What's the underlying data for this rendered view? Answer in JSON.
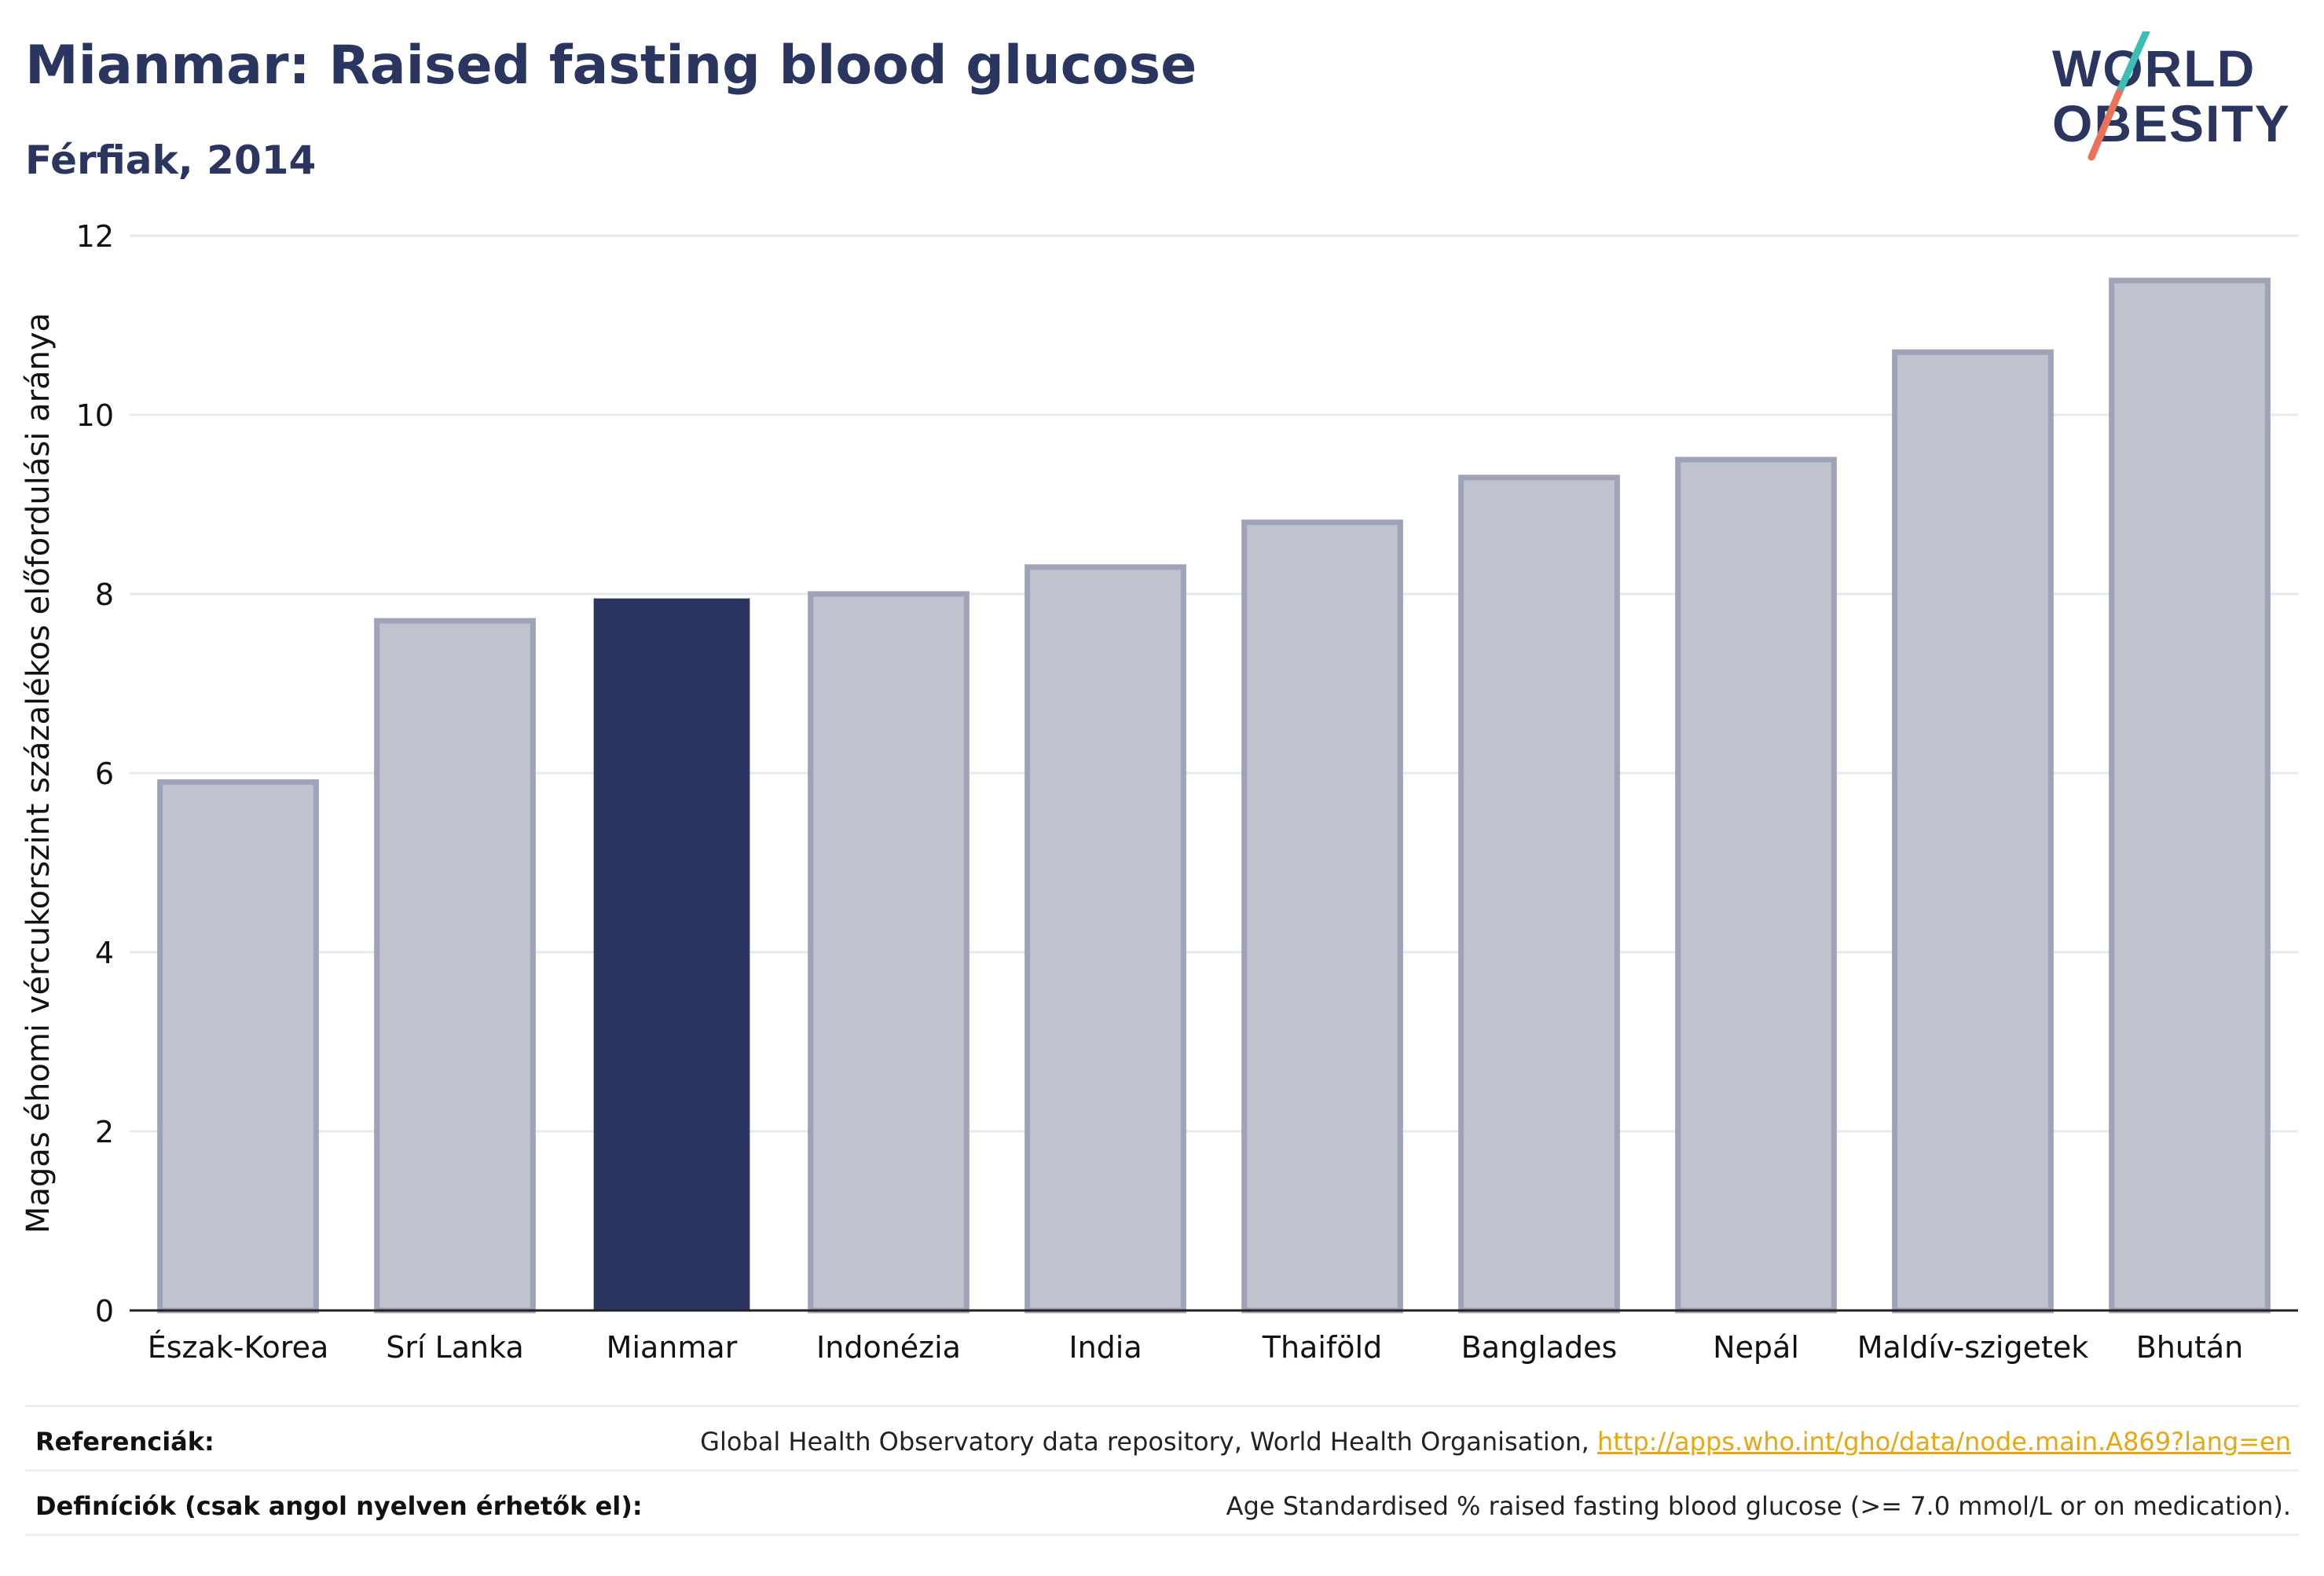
{
  "header": {
    "title": "Mianmar: Raised fasting blood glucose",
    "subtitle": "Férfiak, 2014"
  },
  "logo": {
    "line1": "WORLD",
    "line2": "OBESITY",
    "colors": {
      "text": "#2b3660",
      "slash_top": "#3bbfb4",
      "slash_bottom": "#e8735a"
    }
  },
  "chart_data": {
    "type": "bar",
    "categories": [
      "Észak-Korea",
      "Srí Lanka",
      "Mianmar",
      "Indonézia",
      "India",
      "Thaiföld",
      "Banglades",
      "Nepál",
      "Maldív-szigetek",
      "Bhután"
    ],
    "values": [
      5.9,
      7.7,
      7.95,
      8.0,
      8.3,
      8.8,
      9.3,
      9.5,
      10.7,
      11.5
    ],
    "highlight": "Mianmar",
    "ylabel": "Magas éhomi vércukorszint százalékos előfordulási aránya",
    "xlabel": "",
    "ylim": [
      0,
      12
    ],
    "yticks": [
      0,
      2,
      4,
      6,
      8,
      10,
      12
    ],
    "grid": true,
    "colors": {
      "bar": "#bfc3d0",
      "bar_edge": "#9ea3b8",
      "highlight": "#2b3660",
      "grid": "#e6e8ee",
      "axis": "#222222"
    }
  },
  "footer": {
    "references_label": "Referenciák:",
    "references_text": "Global Health Observatory data repository, World Health Organisation,",
    "references_link": "http://apps.who.int/gho/data/node.main.A869?lang=en",
    "definitions_label": "Definíciók (csak angol nyelven érhetők el):",
    "definitions_text": "Age Standardised % raised fasting blood glucose (>= 7.0 mmol/L or on medication)."
  }
}
